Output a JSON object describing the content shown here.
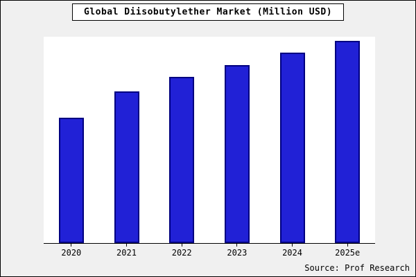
{
  "chart_data": {
    "type": "bar",
    "title": "Global Diisobutylether Market (Million USD)",
    "categories": [
      "2020",
      "2021",
      "2022",
      "2023",
      "2024",
      "2025e"
    ],
    "values": [
      62,
      75,
      82,
      88,
      94,
      100
    ],
    "xlabel": "",
    "ylabel": "",
    "ylim": [
      0,
      102
    ],
    "grid": false,
    "legend": "none"
  },
  "source_text": "Source: Prof Research",
  "colors": {
    "bar_fill": "#2121d6",
    "bar_border": "#000080",
    "background": "#f0f0f0",
    "plot_background": "#ffffff"
  }
}
